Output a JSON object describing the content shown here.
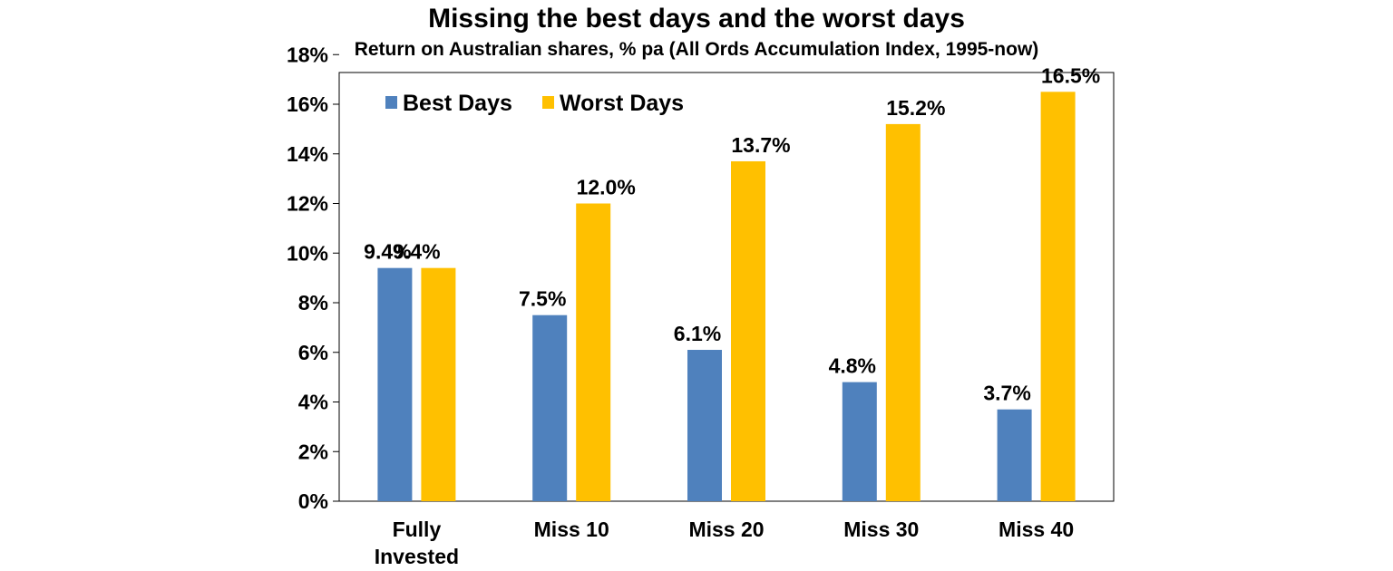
{
  "chart_data": {
    "type": "bar",
    "title": "Missing the best days and the worst days",
    "subtitle": "Return on Australian shares, % pa (All Ords Accumulation Index, 1995-now)",
    "categories": [
      [
        "Fully",
        "Invested"
      ],
      [
        "Miss 10"
      ],
      [
        "Miss 20"
      ],
      [
        "Miss 30"
      ],
      [
        "Miss 40"
      ]
    ],
    "series": [
      {
        "name": "Best Days",
        "color": "#4F81BD",
        "values": [
          9.4,
          7.5,
          6.1,
          4.8,
          3.7
        ],
        "labels": [
          "9.4%",
          "7.5%",
          "6.1%",
          "4.8%",
          "3.7%"
        ]
      },
      {
        "name": "Worst Days",
        "color": "#FFC000",
        "values": [
          9.4,
          12.0,
          13.7,
          15.2,
          16.5
        ],
        "labels": [
          "",
          "12.0%",
          "13.7%",
          "15.2%",
          "16.5%"
        ]
      }
    ],
    "merged_label": {
      "category_index": 0,
      "text": "9.4%"
    },
    "yticks": [
      0,
      2,
      4,
      6,
      8,
      10,
      12,
      14,
      16,
      18
    ],
    "ytick_labels": [
      "0%",
      "2%",
      "4%",
      "6%",
      "8%",
      "10%",
      "12%",
      "14%",
      "16%",
      "18%"
    ],
    "ylim": [
      0,
      18
    ],
    "grid": false,
    "legend_position": "top-left"
  }
}
